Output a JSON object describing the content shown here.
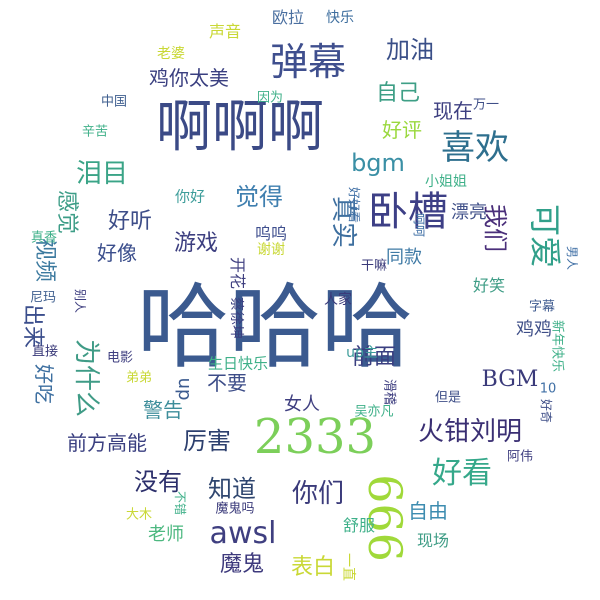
{
  "words": [
    {
      "id": "hahaha",
      "text": "哈哈哈",
      "color": "#3b5a8f"
    },
    {
      "id": "aaa",
      "text": "啊啊啊",
      "color": "#3b4a86"
    },
    {
      "id": "2333",
      "text": "2333",
      "color": "#7ccf5a"
    },
    {
      "id": "666",
      "text": "666",
      "color": "#a0d93a"
    },
    {
      "id": "danmu",
      "text": "弹幕",
      "color": "#3f4f8e"
    },
    {
      "id": "wocao",
      "text": "卧槽",
      "color": "#3d3f86"
    },
    {
      "id": "xihuan",
      "text": "喜欢",
      "color": "#2e6f8e"
    },
    {
      "id": "keai",
      "text": "可爱",
      "color": "#31a08a"
    },
    {
      "id": "haokan",
      "text": "好看",
      "color": "#35a88a"
    },
    {
      "id": "huoqian",
      "text": "火钳刘明",
      "color": "#3a2f73"
    },
    {
      "id": "nimen",
      "text": "你们",
      "color": "#3a3a7a"
    },
    {
      "id": "awsl",
      "text": "awsl",
      "color": "#3f3f80"
    },
    {
      "id": "meiyou",
      "text": "没有",
      "color": "#2c2f6b"
    },
    {
      "id": "zhidao",
      "text": "知道",
      "color": "#2f466f"
    },
    {
      "id": "lihai",
      "text": "厉害",
      "color": "#2c3f6e"
    },
    {
      "id": "mogui",
      "text": "魔鬼",
      "color": "#3e3a7d"
    },
    {
      "id": "biaobai",
      "text": "表白",
      "color": "#c9d836"
    },
    {
      "id": "ziyou",
      "text": "自由",
      "color": "#3d8cb0"
    },
    {
      "id": "weishenme",
      "text": "为什么",
      "color": "#3f9b86"
    },
    {
      "id": "leimu",
      "text": "泪目",
      "color": "#3aa487"
    },
    {
      "id": "bgm1",
      "text": "bgm",
      "color": "#3a8fa5"
    },
    {
      "id": "juede",
      "text": "觉得",
      "color": "#3f7faf"
    },
    {
      "id": "haoting",
      "text": "好听",
      "color": "#3d4d88"
    },
    {
      "id": "ganjue",
      "text": "感觉",
      "color": "#3d9d87"
    },
    {
      "id": "haoxiang",
      "text": "好像",
      "color": "#3b4e8c"
    },
    {
      "id": "shipin",
      "text": "视频",
      "color": "#3c7a9f"
    },
    {
      "id": "youxi",
      "text": "游戏",
      "color": "#3d3f80"
    },
    {
      "id": "zhenshi",
      "text": "真实",
      "color": "#3e6f9f"
    },
    {
      "id": "women",
      "text": "我们",
      "color": "#4a2f7a"
    },
    {
      "id": "jiayou",
      "text": "加油",
      "color": "#3a4f88"
    },
    {
      "id": "ziji",
      "text": "自己",
      "color": "#3e9f86"
    },
    {
      "id": "xianzai",
      "text": "现在",
      "color": "#3d3f80"
    },
    {
      "id": "haoping",
      "text": "好评",
      "color": "#9ad83e"
    },
    {
      "id": "jinitaimei",
      "text": "鸡你太美",
      "color": "#3a3f80"
    },
    {
      "id": "chulai",
      "text": "出来",
      "color": "#3b4e8c"
    },
    {
      "id": "qianmian",
      "text": "前面",
      "color": "#3a3f80"
    },
    {
      "id": "buyao",
      "text": "不要",
      "color": "#3d4d88"
    },
    {
      "id": "jingao",
      "text": "警告",
      "color": "#3d8d9a"
    },
    {
      "id": "haochi",
      "text": "好吃",
      "color": "#3d6fa0"
    },
    {
      "id": "qianfang",
      "text": "前方高能",
      "color": "#3a3f80"
    },
    {
      "id": "BGM2",
      "text": "BGM",
      "color": "#3a3a7a"
    },
    {
      "id": "jiji",
      "text": "鸡鸡",
      "color": "#3f4f88"
    },
    {
      "id": "haoxiao",
      "text": "好笑",
      "color": "#3f9d86"
    },
    {
      "id": "wuwu",
      "text": "呜呜",
      "color": "#3f4f8e"
    },
    {
      "id": "tongkuan",
      "text": "同款",
      "color": "#3f7aa5"
    },
    {
      "id": "up1",
      "text": "up",
      "color": "#3b5a8f"
    },
    {
      "id": "nvren",
      "text": "女人",
      "color": "#3f3f80"
    },
    {
      "id": "upzhu",
      "text": "up主",
      "color": "#3d9d9a"
    },
    {
      "id": "laoshi",
      "text": "老师",
      "color": "#4db880"
    },
    {
      "id": "shufu",
      "text": "舒服",
      "color": "#3eb089"
    },
    {
      "id": "yizhi",
      "text": "一直",
      "color": "#c9d836"
    },
    {
      "id": "xianchang",
      "text": "现场",
      "color": "#3f9d86"
    },
    {
      "id": "zimu",
      "text": "字幕",
      "color": "#3e5a8f"
    },
    {
      "id": "kaihua",
      "text": "开花",
      "color": "#3f3f80"
    },
    {
      "id": "caixukun",
      "text": "蔡徐坤",
      "color": "#3a3f80"
    },
    {
      "id": "shengrikuaile",
      "text": "生日快乐",
      "color": "#3fb089"
    },
    {
      "id": "xiexie",
      "text": "谢谢",
      "color": "#c9d836"
    },
    {
      "id": "ganma",
      "text": "干嘛",
      "color": "#3a3a7a"
    },
    {
      "id": "renjia",
      "text": "人家",
      "color": "#3a3a7a"
    },
    {
      "id": "hehe",
      "text": "呵呵",
      "color": "#3f6fa5"
    },
    {
      "id": "ouila",
      "text": "欧拉",
      "color": "#4a6fa0"
    },
    {
      "id": "kuaile",
      "text": "快乐",
      "color": "#3f6f9f"
    },
    {
      "id": "shengyin",
      "text": "声音",
      "color": "#c9d836"
    },
    {
      "id": "laopo",
      "text": "老婆",
      "color": "#c9d836"
    },
    {
      "id": "zhongguo",
      "text": "中国",
      "color": "#3f5f8f"
    },
    {
      "id": "yinwei",
      "text": "因为",
      "color": "#3fb089"
    },
    {
      "id": "wanyi",
      "text": "万一",
      "color": "#3f4f88"
    },
    {
      "id": "xinku",
      "text": "辛苦",
      "color": "#3fb089"
    },
    {
      "id": "nihao",
      "text": "你好",
      "color": "#3d9d9a"
    },
    {
      "id": "xiaojiejie",
      "text": "小姐姐",
      "color": "#3fb089"
    },
    {
      "id": "piaoliang",
      "text": "漂亮",
      "color": "#3f4f88"
    },
    {
      "id": "nanren",
      "text": "男人",
      "color": "#3f6fa5"
    },
    {
      "id": "zhenxiang",
      "text": "真香",
      "color": "#3fb089"
    },
    {
      "id": "nima",
      "text": "尼玛",
      "color": "#3f5f8f"
    },
    {
      "id": "bieren",
      "text": "别人",
      "color": "#3f3f80"
    },
    {
      "id": "xinnian",
      "text": "新年快乐",
      "color": "#3fb089"
    },
    {
      "id": "zhijie",
      "text": "直接",
      "color": "#3a3a7a"
    },
    {
      "id": "dianying",
      "text": "电影",
      "color": "#3f3f80"
    },
    {
      "id": "didi",
      "text": "弟弟",
      "color": "#c9d836"
    },
    {
      "id": "huaji",
      "text": "滑稽",
      "color": "#3f3f80"
    },
    {
      "id": "wuyifan",
      "text": "吴亦凡",
      "color": "#3fb089"
    },
    {
      "id": "danshi",
      "text": "但是",
      "color": "#3f4f88"
    },
    {
      "id": "ten",
      "text": "10",
      "color": "#3f6fa5"
    },
    {
      "id": "haoqi",
      "text": "好奇",
      "color": "#3f4f88"
    },
    {
      "id": "awei",
      "text": "阿伟",
      "color": "#3f3f80"
    },
    {
      "id": "bucuo",
      "text": "不错",
      "color": "#3fb089"
    },
    {
      "id": "damu",
      "text": "大木",
      "color": "#c9d836"
    },
    {
      "id": "moguima",
      "text": "魔鬼吗",
      "color": "#3a3a7a"
    },
    {
      "id": "haoyoushan",
      "text": "好好看",
      "color": "#3f6fa5"
    }
  ]
}
